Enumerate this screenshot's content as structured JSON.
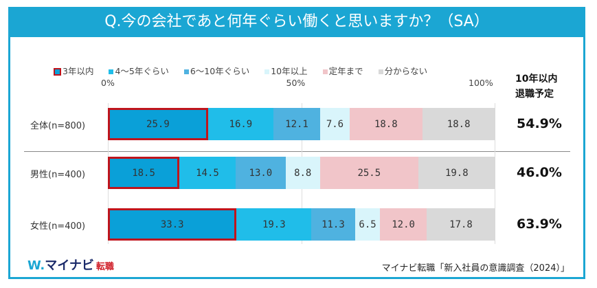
{
  "title": "Q.今の会社であと何年ぐらい働くと思いますか？（SA）",
  "chart_data": {
    "type": "bar",
    "orientation": "horizontal-stacked-100",
    "title": "Q.今の会社であと何年ぐらい働くと思いますか？（SA）",
    "xlim": [
      0,
      100
    ],
    "x_ticks": [
      "0%",
      "50%",
      "100%"
    ],
    "legend_position": "top",
    "categories": [
      "全体(n=800)",
      "男性(n=400)",
      "女性(n=400)"
    ],
    "series": [
      {
        "name": "3年以内",
        "color": "#0aa0d8",
        "values": [
          25.9,
          18.5,
          33.3
        ]
      },
      {
        "name": "4～5年ぐらい",
        "color": "#20bde9",
        "values": [
          16.9,
          14.5,
          19.3
        ]
      },
      {
        "name": "6～10年ぐらい",
        "color": "#4fb2e0",
        "values": [
          12.1,
          13.0,
          11.3
        ]
      },
      {
        "name": "10年以上",
        "color": "#d9f5fb",
        "values": [
          7.6,
          8.8,
          6.5
        ]
      },
      {
        "name": "定年まで",
        "color": "#f1c5c9",
        "values": [
          18.8,
          25.5,
          12.0
        ]
      },
      {
        "name": "分からない",
        "color": "#d9d9d9",
        "values": [
          18.8,
          19.8,
          17.8
        ]
      }
    ],
    "highlight_border_color": "#c0141c",
    "side_header": [
      "10年以内",
      "退職予定"
    ],
    "side_values": [
      "54.9%",
      "46.0%",
      "63.9%"
    ]
  },
  "footer": {
    "logo": "マイナビ",
    "logo_sub": "転職",
    "source": "マイナビ転職「新入社員の意識調査（2024）」"
  }
}
